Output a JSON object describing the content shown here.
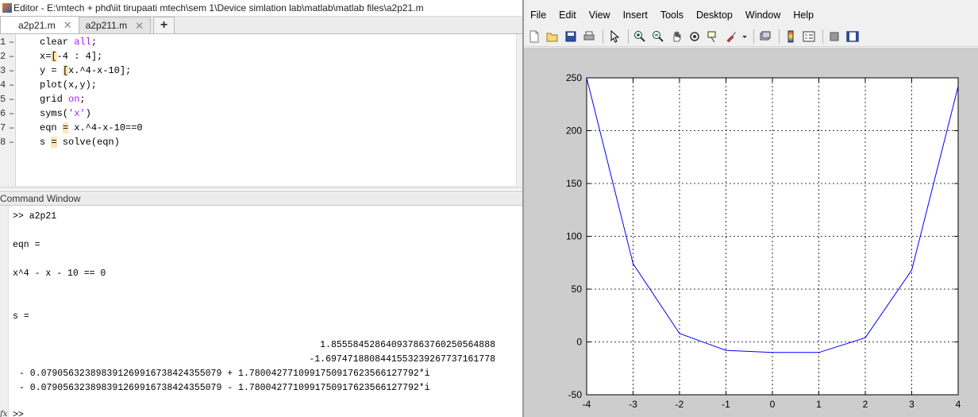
{
  "editor": {
    "title": "Editor - E:\\mtech + phd\\iit tirupaati mtech\\sem 1\\Device simlation lab\\matlab\\matlab files\\a2p21.m",
    "tabs": [
      {
        "label": "a2p21.m",
        "active": true
      },
      {
        "label": "a2p211.m",
        "active": false
      }
    ],
    "add_tab_label": "+",
    "lines": [
      {
        "num": "1",
        "parts": [
          {
            "t": "clear ",
            "c": ""
          },
          {
            "t": "all",
            "c": "kw-purple"
          },
          {
            "t": ";",
            "c": ""
          }
        ]
      },
      {
        "num": "2",
        "parts": [
          {
            "t": "x=",
            "c": ""
          },
          {
            "t": "[",
            "c": "hl"
          },
          {
            "t": "-4 : 4];",
            "c": ""
          }
        ]
      },
      {
        "num": "3",
        "parts": [
          {
            "t": "y = ",
            "c": ""
          },
          {
            "t": "[",
            "c": "hl"
          },
          {
            "t": "x.^4-x-10];",
            "c": ""
          }
        ]
      },
      {
        "num": "4",
        "parts": [
          {
            "t": "plot(x,y);",
            "c": ""
          }
        ]
      },
      {
        "num": "5",
        "parts": [
          {
            "t": "grid ",
            "c": ""
          },
          {
            "t": "on",
            "c": "kw-purple"
          },
          {
            "t": ";",
            "c": ""
          }
        ]
      },
      {
        "num": "6",
        "parts": [
          {
            "t": "syms(",
            "c": ""
          },
          {
            "t": "'x'",
            "c": "str"
          },
          {
            "t": ")",
            "c": ""
          }
        ]
      },
      {
        "num": "7",
        "parts": [
          {
            "t": "eqn ",
            "c": ""
          },
          {
            "t": "=",
            "c": "hl"
          },
          {
            "t": " x.^4-x-10==0",
            "c": ""
          }
        ]
      },
      {
        "num": "8",
        "parts": [
          {
            "t": "s ",
            "c": ""
          },
          {
            "t": "=",
            "c": "hl"
          },
          {
            "t": " solve(eqn)",
            "c": ""
          }
        ]
      }
    ]
  },
  "command_window": {
    "header": "Command Window",
    "prompt_line": ">> a2p21",
    "eqn_label": "eqn =",
    "eqn_value": "x^4 - x - 10 == 0",
    "s_label": "s =",
    "roots_real": [
      "1.8555845286409378637602505648​88",
      "-1.6974718808441553239267737161778"
    ],
    "roots_complex": [
      "- 0.079056323898391269916738424355079 + 1.7800427710991750917623566127792*i",
      "- 0.079056323898391269916738424355079 - 1.7800427710991750917623566127792*i"
    ],
    "next_prompt": ">>",
    "fx_label": "fx"
  },
  "figure": {
    "menu": [
      "File",
      "Edit",
      "View",
      "Insert",
      "Tools",
      "Desktop",
      "Window",
      "Help"
    ],
    "toolbar_icons": [
      "new-figure-icon",
      "open-file-icon",
      "save-icon",
      "print-icon",
      "pointer-icon",
      "zoom-in-icon",
      "zoom-out-icon",
      "pan-icon",
      "rotate-icon",
      "data-cursor-icon",
      "brush-icon",
      "link-icon",
      "colorbar-icon",
      "legend-icon",
      "hide-plot-tools-icon",
      "show-plot-tools-icon"
    ]
  },
  "chart_data": {
    "type": "line",
    "x": [
      -4,
      -3,
      -2,
      -1,
      0,
      1,
      2,
      3,
      4
    ],
    "series": [
      {
        "values": [
          250,
          74,
          8,
          -8,
          -10,
          -10,
          4,
          68,
          242
        ],
        "color": "#0000ff"
      }
    ],
    "xlim": [
      -4,
      4
    ],
    "ylim": [
      -50,
      250
    ],
    "xticks": [
      -4,
      -3,
      -2,
      -1,
      0,
      1,
      2,
      3,
      4
    ],
    "yticks": [
      -50,
      0,
      50,
      100,
      150,
      200,
      250
    ],
    "grid": true,
    "grid_style": "dotted",
    "title": "",
    "xlabel": "",
    "ylabel": ""
  }
}
